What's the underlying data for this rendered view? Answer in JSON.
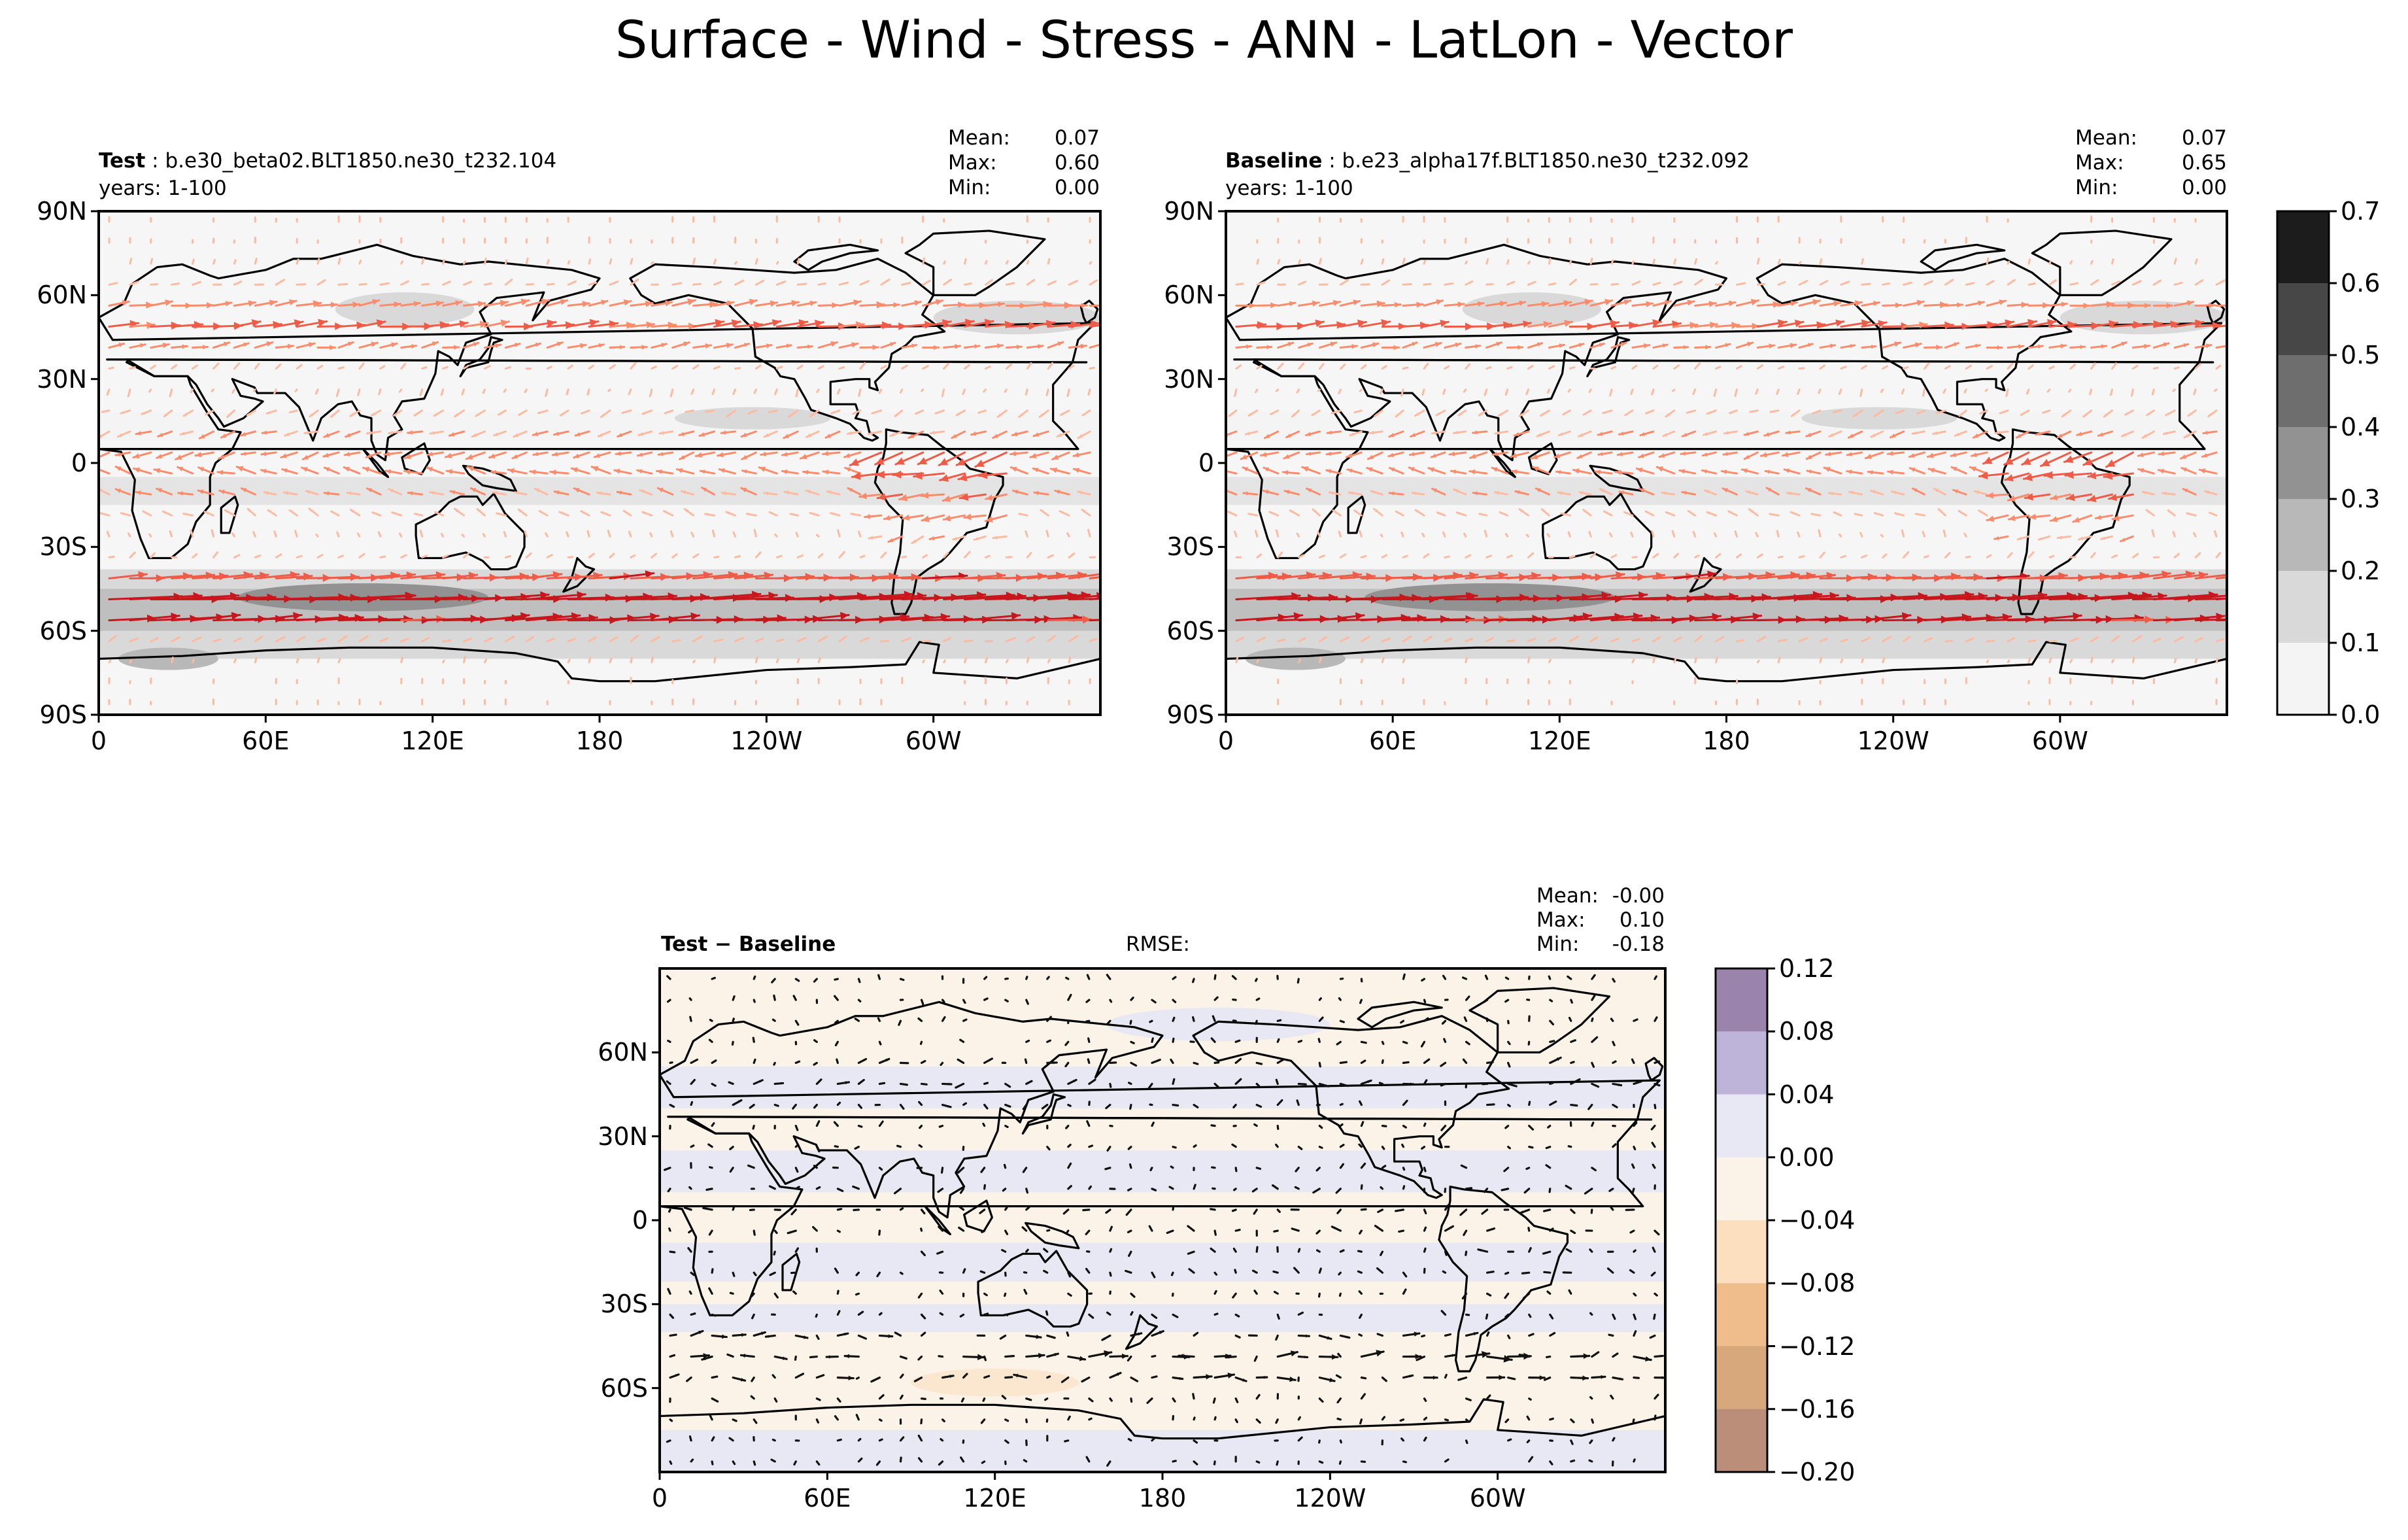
{
  "figure": {
    "title": "Surface - Wind - Stress - ANN - LatLon - Vector"
  },
  "panels": {
    "test": {
      "label": "Test",
      "case": "b.e30_beta02.BLT1850.ne30_t232.104",
      "years": "years: 1-100",
      "stats": {
        "mean_label": "Mean:",
        "mean": "0.07",
        "max_label": "Max:",
        "max": "0.60",
        "min_label": "Min:",
        "min": "0.00"
      }
    },
    "baseline": {
      "label": "Baseline",
      "case": "b.e23_alpha17f.BLT1850.ne30_t232.092",
      "years": "years: 1-100",
      "stats": {
        "mean_label": "Mean:",
        "mean": "0.07",
        "max_label": "Max:",
        "max": "0.65",
        "min_label": "Min:",
        "min": "0.00"
      }
    },
    "diff": {
      "label": "Test − Baseline",
      "rmse_label": "RMSE:",
      "stats": {
        "mean_label": "Mean:",
        "mean": "-0.00",
        "max_label": "Max:",
        "max": "0.10",
        "min_label": "Min:",
        "min": "-0.18"
      }
    }
  },
  "axes": {
    "lat_ticks_top": [
      "90N",
      "60N",
      "30N",
      "0",
      "30S",
      "60S",
      "90S"
    ],
    "lat_ticks_diff": [
      "60N",
      "30N",
      "0",
      "30S",
      "60S"
    ],
    "lon_ticks": [
      "0",
      "60E",
      "120E",
      "180",
      "120W",
      "60W"
    ]
  },
  "colorbars": {
    "magnitude": {
      "ticks": [
        "0.7",
        "0.6",
        "0.5",
        "0.4",
        "0.3",
        "0.2",
        "0.1",
        "0.0"
      ],
      "colors": [
        "#1c1c1c",
        "#474747",
        "#6e6e6e",
        "#929292",
        "#b8b8b8",
        "#d9d9d9",
        "#f4f4f4"
      ]
    },
    "difference": {
      "ticks": [
        "0.12",
        "0.08",
        "0.04",
        "0.00",
        "−0.04",
        "−0.08",
        "−0.12",
        "−0.16",
        "−0.20"
      ],
      "colors": [
        "#9a84ac",
        "#beb4da",
        "#e8e8f4",
        "#fbf3e8",
        "#fbdfbf",
        "#efbd8b",
        "#d8a87d",
        "#bb8e79"
      ]
    }
  },
  "chart_data": [
    {
      "type": "vector-map",
      "panel": "test",
      "quantity": "surface wind stress magnitude",
      "lon_range": [
        0,
        360
      ],
      "lat_range": [
        -90,
        90
      ],
      "colorbar_range": [
        0.0,
        0.7
      ],
      "mean": 0.07,
      "max": 0.6,
      "min": 0.0
    },
    {
      "type": "vector-map",
      "panel": "baseline",
      "quantity": "surface wind stress magnitude",
      "lon_range": [
        0,
        360
      ],
      "lat_range": [
        -90,
        90
      ],
      "colorbar_range": [
        0.0,
        0.7
      ],
      "mean": 0.07,
      "max": 0.65,
      "min": 0.0
    },
    {
      "type": "vector-map",
      "panel": "diff",
      "quantity": "wind stress difference",
      "lon_range": [
        0,
        360
      ],
      "lat_range": [
        -90,
        90
      ],
      "colorbar_range": [
        -0.2,
        0.12
      ],
      "mean": -0.0,
      "max": 0.1,
      "min": -0.18
    }
  ]
}
